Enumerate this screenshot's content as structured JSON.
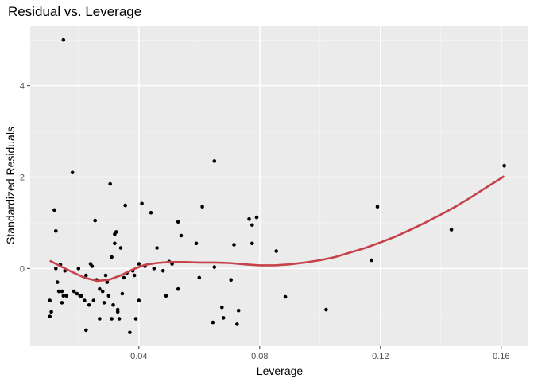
{
  "chart_data": {
    "type": "scatter",
    "title": "Residual vs. Leverage",
    "xlabel": "Leverage",
    "ylabel": "Standardized Residuals",
    "xlim": [
      0.004,
      0.169
    ],
    "ylim": [
      -1.7,
      5.3
    ],
    "x_ticks": [
      {
        "value": 0.04,
        "label": "0.04"
      },
      {
        "value": 0.08,
        "label": "0.08"
      },
      {
        "value": 0.12,
        "label": "0.12"
      },
      {
        "value": 0.16,
        "label": "0.16"
      }
    ],
    "x_minor_ticks": [
      0.02,
      0.06,
      0.1,
      0.14
    ],
    "y_ticks": [
      {
        "value": 0,
        "label": "0"
      },
      {
        "value": 2,
        "label": "2"
      },
      {
        "value": 4,
        "label": "4"
      }
    ],
    "y_minor_ticks": [
      -1,
      1,
      3,
      5
    ],
    "grid": true,
    "colors": {
      "panel_background": "#ebebeb",
      "grid_major": "#ffffff",
      "grid_minor": "#f5f5f5",
      "points": "#000000",
      "smooth_line": "#c44248",
      "tick": "#333333"
    },
    "points": [
      [
        0.015,
        5.0
      ],
      [
        0.0105,
        -0.7
      ],
      [
        0.0105,
        -1.05
      ],
      [
        0.011,
        -0.95
      ],
      [
        0.012,
        1.28
      ],
      [
        0.0125,
        0.82
      ],
      [
        0.0125,
        0.0
      ],
      [
        0.013,
        -0.3
      ],
      [
        0.0135,
        -0.5
      ],
      [
        0.014,
        0.08
      ],
      [
        0.0145,
        -0.5
      ],
      [
        0.0145,
        -0.75
      ],
      [
        0.015,
        -0.6
      ],
      [
        0.0155,
        -0.05
      ],
      [
        0.016,
        -0.6
      ],
      [
        0.018,
        2.1
      ],
      [
        0.0185,
        -0.5
      ],
      [
        0.0195,
        -0.55
      ],
      [
        0.02,
        0.0
      ],
      [
        0.0205,
        -0.6
      ],
      [
        0.021,
        -0.6
      ],
      [
        0.022,
        -0.7
      ],
      [
        0.0225,
        -1.35
      ],
      [
        0.0225,
        -0.15
      ],
      [
        0.0235,
        -0.8
      ],
      [
        0.024,
        0.1
      ],
      [
        0.0245,
        0.05
      ],
      [
        0.025,
        -0.7
      ],
      [
        0.0255,
        1.05
      ],
      [
        0.026,
        -0.25
      ],
      [
        0.027,
        -0.45
      ],
      [
        0.027,
        -1.1
      ],
      [
        0.028,
        -0.5
      ],
      [
        0.0285,
        -0.75
      ],
      [
        0.029,
        -0.15
      ],
      [
        0.0295,
        -0.3
      ],
      [
        0.03,
        -0.6
      ],
      [
        0.0305,
        1.85
      ],
      [
        0.031,
        0.25
      ],
      [
        0.031,
        -1.1
      ],
      [
        0.0315,
        -0.8
      ],
      [
        0.032,
        0.75
      ],
      [
        0.032,
        0.55
      ],
      [
        0.0325,
        0.8
      ],
      [
        0.033,
        -0.9
      ],
      [
        0.033,
        -0.95
      ],
      [
        0.0335,
        -1.1
      ],
      [
        0.034,
        0.45
      ],
      [
        0.0345,
        -0.55
      ],
      [
        0.035,
        -0.2
      ],
      [
        0.0355,
        1.38
      ],
      [
        0.036,
        -0.1
      ],
      [
        0.037,
        -1.4
      ],
      [
        0.038,
        -0.05
      ],
      [
        0.0385,
        -0.15
      ],
      [
        0.039,
        -1.1
      ],
      [
        0.04,
        0.1
      ],
      [
        0.04,
        -0.7
      ],
      [
        0.041,
        1.42
      ],
      [
        0.042,
        0.05
      ],
      [
        0.044,
        1.22
      ],
      [
        0.045,
        0.0
      ],
      [
        0.046,
        0.45
      ],
      [
        0.048,
        -0.05
      ],
      [
        0.049,
        -0.6
      ],
      [
        0.05,
        0.15
      ],
      [
        0.051,
        0.1
      ],
      [
        0.053,
        -0.45
      ],
      [
        0.053,
        1.02
      ],
      [
        0.054,
        0.72
      ],
      [
        0.059,
        0.55
      ],
      [
        0.06,
        -0.2
      ],
      [
        0.061,
        1.35
      ],
      [
        0.0645,
        -1.18
      ],
      [
        0.065,
        2.35
      ],
      [
        0.065,
        0.03
      ],
      [
        0.0675,
        -0.85
      ],
      [
        0.068,
        -1.08
      ],
      [
        0.0705,
        -0.25
      ],
      [
        0.0715,
        0.52
      ],
      [
        0.0725,
        -1.22
      ],
      [
        0.073,
        -0.92
      ],
      [
        0.0765,
        1.08
      ],
      [
        0.0775,
        0.95
      ],
      [
        0.0775,
        0.55
      ],
      [
        0.079,
        1.12
      ],
      [
        0.0855,
        0.38
      ],
      [
        0.0885,
        -0.62
      ],
      [
        0.102,
        -0.9
      ],
      [
        0.117,
        0.18
      ],
      [
        0.119,
        1.35
      ],
      [
        0.1435,
        0.85
      ],
      [
        0.161,
        2.25
      ]
    ],
    "smooth": [
      [
        0.0105,
        0.17
      ],
      [
        0.014,
        0.05
      ],
      [
        0.018,
        -0.08
      ],
      [
        0.022,
        -0.2
      ],
      [
        0.026,
        -0.27
      ],
      [
        0.03,
        -0.25
      ],
      [
        0.034,
        -0.15
      ],
      [
        0.038,
        -0.02
      ],
      [
        0.042,
        0.08
      ],
      [
        0.046,
        0.12
      ],
      [
        0.05,
        0.14
      ],
      [
        0.055,
        0.14
      ],
      [
        0.06,
        0.13
      ],
      [
        0.065,
        0.13
      ],
      [
        0.07,
        0.12
      ],
      [
        0.075,
        0.09
      ],
      [
        0.08,
        0.07
      ],
      [
        0.085,
        0.07
      ],
      [
        0.09,
        0.09
      ],
      [
        0.095,
        0.13
      ],
      [
        0.1,
        0.18
      ],
      [
        0.105,
        0.25
      ],
      [
        0.11,
        0.35
      ],
      [
        0.115,
        0.45
      ],
      [
        0.12,
        0.57
      ],
      [
        0.125,
        0.7
      ],
      [
        0.13,
        0.85
      ],
      [
        0.135,
        1.01
      ],
      [
        0.14,
        1.18
      ],
      [
        0.145,
        1.36
      ],
      [
        0.15,
        1.56
      ],
      [
        0.155,
        1.77
      ],
      [
        0.161,
        2.02
      ]
    ]
  }
}
